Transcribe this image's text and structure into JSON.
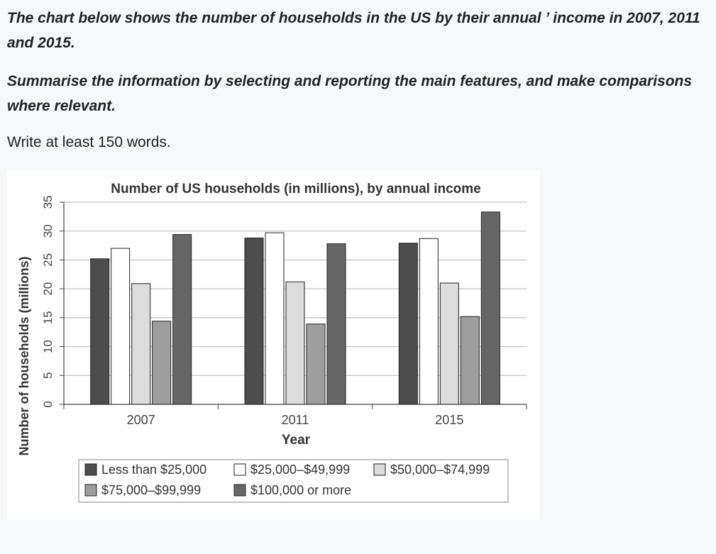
{
  "task": {
    "line1": "The chart below shows the number of households in the US by their annual ’ income in 2007, 2011 and 2015.",
    "line2": "Summarise the information by selecting and reporting the main features, and make comparisons where relevant.",
    "line3": "Write at least 150 words."
  },
  "colors": {
    "less_25k": "#4d4d4d",
    "25k_49k": "#ffffff",
    "50k_74k": "#dcdcdc",
    "75k_99k": "#9e9e9e",
    "100k_more": "#666666"
  },
  "chart_data": {
    "type": "bar",
    "title": "Number of US households (in millions), by annual income",
    "xlabel": "Year",
    "ylabel": "Number of households (millions)",
    "categories": [
      "2007",
      "2011",
      "2015"
    ],
    "ylim": [
      0,
      35
    ],
    "yticks": [
      0,
      5,
      10,
      15,
      20,
      25,
      30,
      35
    ],
    "grid": true,
    "legend_position": "bottom",
    "series": [
      {
        "name": "Less than $25,000",
        "values": [
          25.2,
          28.8,
          27.9
        ]
      },
      {
        "name": "$25,000–$49,999",
        "values": [
          27.0,
          29.7,
          28.7
        ]
      },
      {
        "name": "$50,000–$74,999",
        "values": [
          20.9,
          21.2,
          21.0
        ]
      },
      {
        "name": "$75,000–$99,999",
        "values": [
          14.4,
          13.9,
          15.2
        ]
      },
      {
        "name": "$100,000 or more",
        "values": [
          29.4,
          27.8,
          33.3
        ]
      }
    ]
  }
}
